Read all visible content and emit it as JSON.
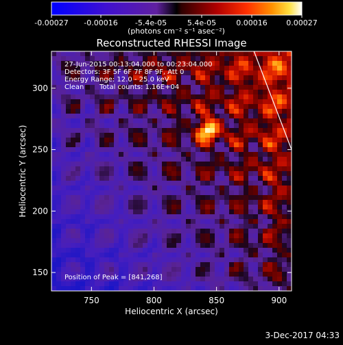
{
  "colorbar": {
    "ticks": [
      "-0.00027",
      "-0.00016",
      "-5.4e-05",
      "5.4e-05",
      "0.00016",
      "0.00027"
    ],
    "unit_label": "(photons cm⁻² s⁻¹ asec⁻²)",
    "range": [
      -0.00027,
      0.00027
    ]
  },
  "chart_data": {
    "type": "heatmap",
    "title": "Reconstructed RHESSI Image",
    "xlabel": "Heliocentric X (arcsec)",
    "ylabel": "Heliocentric Y (arcsec)",
    "xlim": [
      718,
      910
    ],
    "ylim": [
      135,
      330
    ],
    "x_ticks": [
      "750",
      "800",
      "850",
      "900"
    ],
    "y_ticks": [
      "150",
      "200",
      "250",
      "300"
    ],
    "x_tick_values": [
      750,
      800,
      850,
      900
    ],
    "y_tick_values": [
      150,
      200,
      250,
      300
    ],
    "grid": false,
    "annotations": {
      "time": "27-Jun-2015 00:13:04.000 to 00:23:04.000",
      "detectors": "Detectors: 3F 5F 6F 7F 8F 9F, Att 0",
      "energy": "Energy Range: 12.0 - 25.0 keV",
      "method": "Clean",
      "counts": "Total counts: 1.16E+04",
      "peak": "Position of Peak = [841,268]"
    },
    "peak": {
      "x": 841,
      "y": 268,
      "value": 0.00027
    },
    "limb_line": [
      [
        880,
        330
      ],
      [
        910,
        250
      ]
    ],
    "colormap": "rainbow-like: blue-purple (low) to red, orange, white (high)"
  },
  "footer": {
    "date": "3-Dec-2017 04:33"
  }
}
